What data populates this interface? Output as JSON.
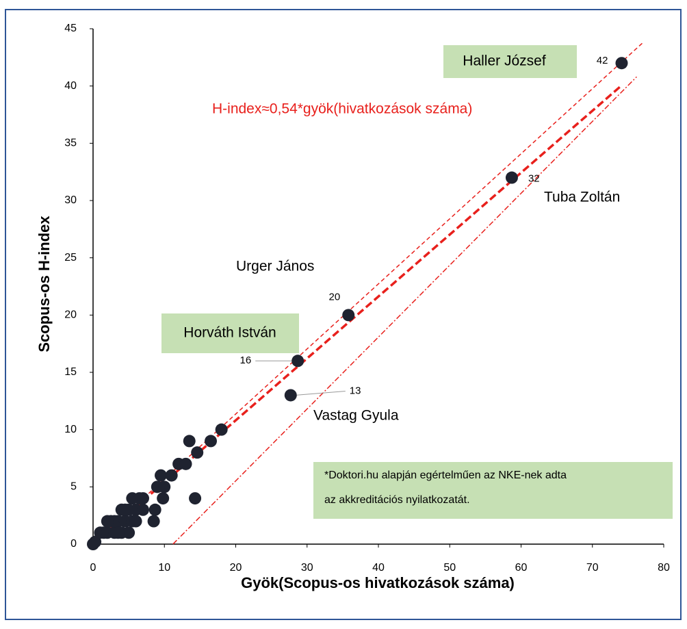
{
  "chart_data": {
    "type": "scatter",
    "x_label": "Gyök(Scopus-os hivatkozások száma)",
    "y_label": "Scopus-os H-index",
    "xlim": [
      0,
      80
    ],
    "xticks": [
      0,
      10,
      20,
      30,
      40,
      50,
      60,
      70,
      80
    ],
    "ylim": [
      0,
      45
    ],
    "yticks": [
      0,
      5,
      10,
      15,
      20,
      25,
      30,
      35,
      40,
      45
    ],
    "grid": false,
    "series": [
      {
        "color": "#1f2330",
        "x": [
          0,
          0.3,
          1,
          1.5,
          2,
          2.5,
          3,
          3,
          3.5,
          4,
          4,
          4.5,
          5,
          5,
          5.5,
          5.5,
          6,
          6.5,
          7,
          7,
          8.5,
          8.7,
          9,
          9.5,
          9.8,
          10,
          11,
          12,
          13,
          13.5,
          14.3,
          14.6,
          16.5,
          18,
          2,
          3.5,
          4.5,
          6
        ],
        "values": [
          0,
          0.2,
          1,
          1,
          1,
          2,
          1,
          2,
          2,
          3,
          1,
          2,
          3,
          1,
          4,
          2,
          3,
          4,
          3,
          4,
          2,
          3,
          5,
          6,
          4,
          5,
          6,
          7,
          7,
          9,
          4,
          8,
          9,
          10,
          2,
          1,
          3,
          2
        ]
      },
      {
        "color": "#1f2330",
        "data_labels": true,
        "x": [
          74.1,
          58.7,
          35.8,
          28.7,
          27.7
        ],
        "values": [
          42,
          32,
          20,
          16,
          13
        ]
      }
    ],
    "lines": [
      {
        "color": "#e8201c",
        "dash": "dashed",
        "width": "thick",
        "x": [
          0,
          74
        ],
        "y": [
          0,
          40
        ]
      },
      {
        "color": "#e8201c",
        "dash": "dashed",
        "width": "thin",
        "x": [
          0,
          77.1
        ],
        "y": [
          0,
          43.8
        ]
      },
      {
        "color": "#e8201c",
        "dash": "dashdot",
        "width": "thin",
        "x": [
          11.2,
          76.2
        ],
        "y": [
          0,
          40.8
        ]
      }
    ],
    "equation": "H-index≈0,54*gyök(hivatkozások száma)",
    "annotations": [
      "Haller József",
      "Tuba Zoltán",
      "Urger János",
      "Horváth István",
      "Vastag Gyula"
    ],
    "note": [
      "*Doktori.hu alapján egértelműen az NKE-nek adta",
      "az akkreditációs nyilatkozatát."
    ]
  }
}
